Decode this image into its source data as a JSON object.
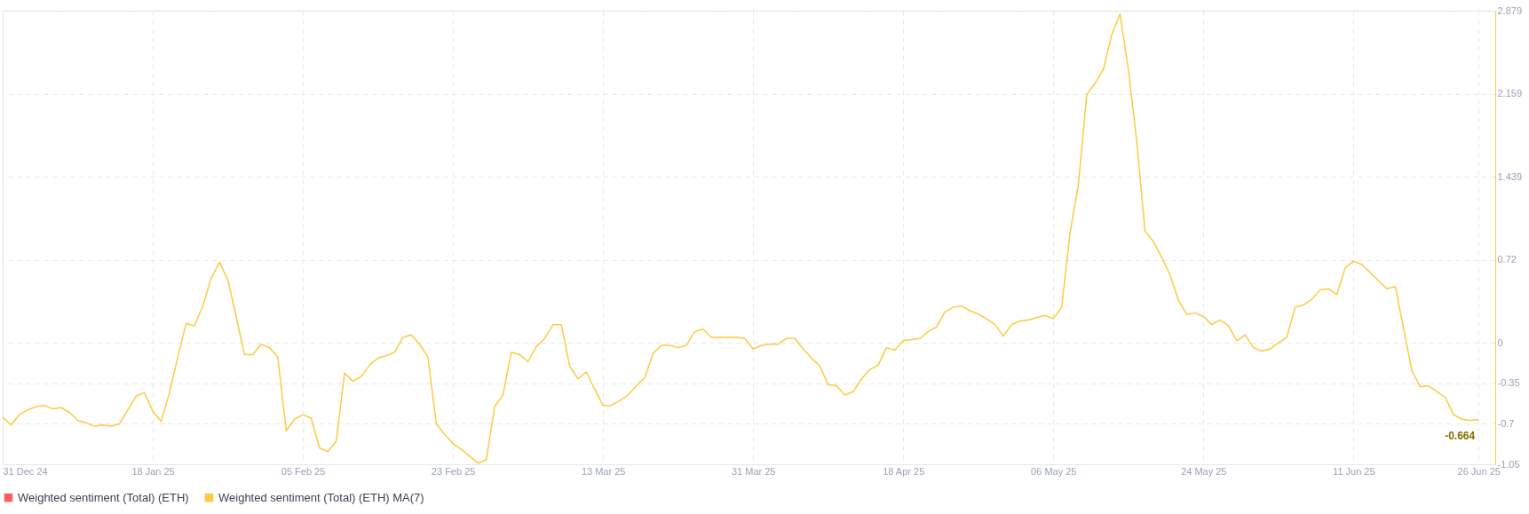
{
  "chart_data": {
    "type": "line",
    "x": [
      "2024-12-31",
      "2025-01-01",
      "2025-01-02",
      "2025-01-03",
      "2025-01-04",
      "2025-01-05",
      "2025-01-06",
      "2025-01-07",
      "2025-01-08",
      "2025-01-09",
      "2025-01-10",
      "2025-01-11",
      "2025-01-12",
      "2025-01-13",
      "2025-01-14",
      "2025-01-15",
      "2025-01-16",
      "2025-01-17",
      "2025-01-18",
      "2025-01-19",
      "2025-01-20",
      "2025-01-21",
      "2025-01-22",
      "2025-01-23",
      "2025-01-24",
      "2025-01-25",
      "2025-01-26",
      "2025-01-27",
      "2025-01-28",
      "2025-01-29",
      "2025-01-30",
      "2025-01-31",
      "2025-02-01",
      "2025-02-02",
      "2025-02-03",
      "2025-02-04",
      "2025-02-05",
      "2025-02-06",
      "2025-02-07",
      "2025-02-08",
      "2025-02-09",
      "2025-02-10",
      "2025-02-11",
      "2025-02-12",
      "2025-02-13",
      "2025-02-14",
      "2025-02-15",
      "2025-02-16",
      "2025-02-17",
      "2025-02-18",
      "2025-02-19",
      "2025-02-20",
      "2025-02-21",
      "2025-02-22",
      "2025-02-23",
      "2025-02-24",
      "2025-02-25",
      "2025-02-26",
      "2025-02-27",
      "2025-02-28",
      "2025-03-01",
      "2025-03-02",
      "2025-03-03",
      "2025-03-04",
      "2025-03-05",
      "2025-03-06",
      "2025-03-07",
      "2025-03-08",
      "2025-03-09",
      "2025-03-10",
      "2025-03-11",
      "2025-03-12",
      "2025-03-13",
      "2025-03-14",
      "2025-03-15",
      "2025-03-16",
      "2025-03-17",
      "2025-03-18",
      "2025-03-19",
      "2025-03-20",
      "2025-03-21",
      "2025-03-22",
      "2025-03-23",
      "2025-03-24",
      "2025-03-25",
      "2025-03-26",
      "2025-03-27",
      "2025-03-28",
      "2025-03-29",
      "2025-03-30",
      "2025-03-31",
      "2025-04-01",
      "2025-04-02",
      "2025-04-03",
      "2025-04-04",
      "2025-04-05",
      "2025-04-06",
      "2025-04-07",
      "2025-04-08",
      "2025-04-09",
      "2025-04-10",
      "2025-04-11",
      "2025-04-12",
      "2025-04-13",
      "2025-04-14",
      "2025-04-15",
      "2025-04-16",
      "2025-04-17",
      "2025-04-18",
      "2025-04-19",
      "2025-04-20",
      "2025-04-21",
      "2025-04-22",
      "2025-04-23",
      "2025-04-24",
      "2025-04-25",
      "2025-04-26",
      "2025-04-27",
      "2025-04-28",
      "2025-04-29",
      "2025-04-30",
      "2025-05-01",
      "2025-05-02",
      "2025-05-03",
      "2025-05-04",
      "2025-05-05",
      "2025-05-06",
      "2025-05-07",
      "2025-05-08",
      "2025-05-09",
      "2025-05-10",
      "2025-05-11",
      "2025-05-12",
      "2025-05-13",
      "2025-05-14",
      "2025-05-15",
      "2025-05-16",
      "2025-05-17",
      "2025-05-18",
      "2025-05-19",
      "2025-05-20",
      "2025-05-21",
      "2025-05-22",
      "2025-05-23",
      "2025-05-24",
      "2025-05-25",
      "2025-05-26",
      "2025-05-27",
      "2025-05-28",
      "2025-05-29",
      "2025-05-30",
      "2025-05-31",
      "2025-06-01",
      "2025-06-02",
      "2025-06-03",
      "2025-06-04",
      "2025-06-05",
      "2025-06-06",
      "2025-06-07",
      "2025-06-08",
      "2025-06-09",
      "2025-06-10",
      "2025-06-11",
      "2025-06-12",
      "2025-06-13",
      "2025-06-14",
      "2025-06-15",
      "2025-06-16",
      "2025-06-17",
      "2025-06-18",
      "2025-06-19",
      "2025-06-20",
      "2025-06-21",
      "2025-06-22",
      "2025-06-23",
      "2025-06-24",
      "2025-06-25",
      "2025-06-26"
    ],
    "series": [
      {
        "name": "Weighted sentiment (Total) (ETH)",
        "color": "#ff5b5b",
        "values": [
          null,
          null,
          null,
          null,
          null,
          null,
          null,
          null,
          null,
          null,
          null,
          null,
          null,
          null,
          null,
          null,
          null,
          null,
          null,
          null,
          null,
          null,
          null,
          null,
          null,
          null,
          null,
          null,
          null,
          null,
          null,
          null,
          null,
          null,
          null,
          null,
          null,
          null,
          null,
          null,
          null,
          null,
          null,
          null,
          null,
          null,
          null,
          null,
          null,
          null,
          null,
          null,
          null,
          null,
          null,
          null,
          null,
          null,
          null,
          null,
          null,
          null,
          null,
          null,
          null,
          null,
          null,
          null,
          null,
          null,
          null,
          null,
          null,
          null,
          null,
          null,
          null,
          null,
          null,
          null,
          null,
          null,
          null,
          null,
          null,
          null,
          null,
          null,
          null,
          null,
          null,
          null,
          null,
          null,
          null,
          null,
          null,
          null,
          null,
          null,
          null,
          null,
          null,
          null,
          null,
          null,
          null,
          null,
          null,
          null,
          null,
          null,
          null,
          null,
          null,
          null,
          null,
          null,
          null,
          null,
          null,
          null,
          null,
          null,
          null,
          null,
          null,
          null,
          null,
          null,
          null,
          null,
          null,
          null,
          null,
          null,
          null,
          null,
          null,
          null,
          null,
          null,
          null,
          null,
          null,
          null,
          null,
          null,
          null,
          null,
          null,
          null,
          null,
          null,
          null,
          null,
          null,
          null,
          null,
          null,
          null,
          null,
          null,
          null,
          null,
          null,
          null,
          null,
          null,
          null,
          null,
          null,
          null,
          null,
          null,
          null,
          null,
          null
        ]
      },
      {
        "name": "Weighted sentiment (Total) (ETH) MA(7)",
        "color": "#ffc940",
        "values": [
          -0.64,
          -0.71,
          -0.62,
          -0.58,
          -0.55,
          -0.54,
          -0.57,
          -0.56,
          -0.6,
          -0.67,
          -0.69,
          -0.72,
          -0.71,
          -0.72,
          -0.7,
          -0.58,
          -0.46,
          -0.43,
          -0.59,
          -0.68,
          -0.43,
          -0.12,
          0.17,
          0.15,
          0.32,
          0.56,
          0.7,
          0.55,
          0.23,
          -0.1,
          -0.1,
          -0.01,
          -0.04,
          -0.12,
          -0.76,
          -0.66,
          -0.62,
          -0.65,
          -0.91,
          -0.94,
          -0.85,
          -0.26,
          -0.33,
          -0.29,
          -0.19,
          -0.13,
          -0.11,
          -0.08,
          0.05,
          0.07,
          -0.01,
          -0.12,
          -0.7,
          -0.79,
          -0.87,
          -0.92,
          -0.98,
          -1.04,
          -1.01,
          -0.55,
          -0.45,
          -0.08,
          -0.1,
          -0.16,
          -0.03,
          0.04,
          0.16,
          0.16,
          -0.2,
          -0.31,
          -0.25,
          -0.4,
          -0.54,
          -0.54,
          -0.5,
          -0.45,
          -0.37,
          -0.3,
          -0.09,
          -0.02,
          -0.02,
          -0.04,
          -0.02,
          0.1,
          0.12,
          0.05,
          0.05,
          0.05,
          0.05,
          0.04,
          -0.05,
          -0.02,
          -0.01,
          -0.01,
          0.04,
          0.04,
          -0.05,
          -0.13,
          -0.2,
          -0.36,
          -0.37,
          -0.45,
          -0.42,
          -0.31,
          -0.23,
          -0.19,
          -0.04,
          -0.06,
          0.02,
          0.03,
          0.04,
          0.1,
          0.14,
          0.27,
          0.31,
          0.32,
          0.28,
          0.25,
          0.21,
          0.16,
          0.06,
          0.16,
          0.19,
          0.2,
          0.22,
          0.24,
          0.21,
          0.31,
          0.95,
          1.37,
          2.15,
          2.25,
          2.37,
          2.67,
          2.85,
          2.37,
          1.75,
          0.97,
          0.88,
          0.74,
          0.59,
          0.37,
          0.25,
          0.26,
          0.23,
          0.16,
          0.2,
          0.15,
          0.02,
          0.07,
          -0.04,
          -0.07,
          -0.05,
          0.0,
          0.05,
          0.31,
          0.33,
          0.38,
          0.46,
          0.47,
          0.42,
          0.65,
          0.71,
          0.68,
          0.61,
          0.54,
          0.47,
          0.49,
          0.13,
          -0.24,
          -0.38,
          -0.37,
          -0.42,
          -0.47,
          -0.62,
          -0.66,
          -0.67,
          -0.664
        ]
      }
    ],
    "xlim": [
      "2024-12-31",
      "2025-06-28"
    ],
    "xticks": [
      {
        "value": "2024-12-31",
        "label": "31 Dec 24"
      },
      {
        "value": "2025-01-18",
        "label": "18 Jan 25"
      },
      {
        "value": "2025-02-05",
        "label": "05 Feb 25"
      },
      {
        "value": "2025-02-23",
        "label": "23 Feb 25"
      },
      {
        "value": "2025-03-13",
        "label": "13 Mar 25"
      },
      {
        "value": "2025-03-31",
        "label": "31 Mar 25"
      },
      {
        "value": "2025-04-18",
        "label": "18 Apr 25"
      },
      {
        "value": "2025-05-06",
        "label": "06 May 25"
      },
      {
        "value": "2025-05-24",
        "label": "24 May 25"
      },
      {
        "value": "2025-06-11",
        "label": "11 Jun 25"
      },
      {
        "value": "2025-06-26",
        "label": "26 Jun 25"
      }
    ],
    "ylim": [
      -1.05,
      2.879
    ],
    "yticks": [
      2.879,
      2.159,
      1.439,
      0.72,
      0,
      -0.35,
      -0.7,
      -1.05
    ],
    "annotations": [
      {
        "text": "-0.664",
        "x": "2025-06-26",
        "y": -0.664
      }
    ],
    "grid": true,
    "legend": "bottom",
    "line_style": "solid",
    "marker": "none"
  }
}
